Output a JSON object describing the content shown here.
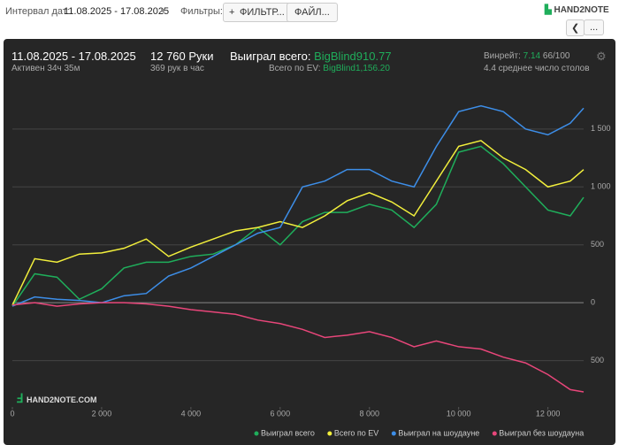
{
  "toolbar": {
    "date_label": "Интервал дат:",
    "date_range": "11.08.2025 - 17.08.2025",
    "filters_label": "Фильтры:",
    "filter_button": "ФИЛЬТР...",
    "file_button": "ФАЙЛ...",
    "logo": "HAND2NOTE",
    "more": "..."
  },
  "summary": {
    "range": "11.08.2025 - 17.08.2025",
    "active": "Активен 34ч 35м",
    "hands": "12 760 Руки",
    "hands_per_hour": "369 рук в час",
    "won_label": "Выиграл всего:",
    "won_value": "BigBlind910.77",
    "ev_label": "Всего по EV:",
    "ev_value": "BigBlind1,156.20",
    "winrate_label": "Винрейт:",
    "winrate_value": "7.14",
    "winrate_unit": "66/100",
    "tables": "4.4 среднее число столов"
  },
  "watermark": "HAND2NOTE.COM",
  "chart_data": {
    "type": "line",
    "x": [
      0,
      500,
      1000,
      1500,
      2000,
      2500,
      3000,
      3500,
      4000,
      4500,
      5000,
      5500,
      6000,
      6500,
      7000,
      7500,
      8000,
      8500,
      9000,
      9500,
      10000,
      10500,
      11000,
      11500,
      12000,
      12500,
      12800
    ],
    "xlim": [
      0,
      12800
    ],
    "xticks": [
      0,
      {
        "value": 2000,
        "label": "2 000"
      },
      {
        "value": 4000,
        "label": "4 000"
      },
      {
        "value": 6000,
        "label": "6 000"
      },
      {
        "value": 8000,
        "label": "8 000"
      },
      {
        "value": 10000,
        "label": "10 000"
      },
      {
        "value": 12000,
        "label": "12 000"
      }
    ],
    "ylim": [
      -900,
      1850
    ],
    "yticks": [
      {
        "value": -500,
        "label": "500"
      },
      0,
      500,
      {
        "value": 1000,
        "label": "1 000"
      },
      {
        "value": 1500,
        "label": "1 500"
      }
    ],
    "grid": true,
    "series": [
      {
        "name": "Выиграл всего",
        "color": "#1fae5b",
        "values": [
          -30,
          250,
          220,
          30,
          120,
          300,
          350,
          350,
          400,
          420,
          500,
          650,
          500,
          700,
          780,
          780,
          850,
          800,
          650,
          850,
          1300,
          1350,
          1200,
          1000,
          800,
          750,
          910
        ]
      },
      {
        "name": "Всего по EV",
        "color": "#f2ef3c",
        "values": [
          -20,
          380,
          350,
          420,
          430,
          470,
          550,
          400,
          480,
          550,
          620,
          650,
          700,
          650,
          750,
          880,
          950,
          870,
          750,
          1050,
          1350,
          1400,
          1250,
          1150,
          1000,
          1050,
          1150
        ]
      },
      {
        "name": "Выиграл на шоудауне",
        "color": "#3d8ee8",
        "values": [
          -30,
          50,
          30,
          20,
          0,
          60,
          80,
          230,
          300,
          400,
          500,
          600,
          650,
          1000,
          1050,
          1150,
          1150,
          1050,
          1000,
          1350,
          1650,
          1700,
          1650,
          1500,
          1450,
          1550,
          1680
        ]
      },
      {
        "name": "Выиграл без шоудауна",
        "color": "#e8467a",
        "values": [
          -20,
          0,
          -30,
          -10,
          0,
          0,
          -10,
          -30,
          -60,
          -80,
          -100,
          -150,
          -180,
          -230,
          -300,
          -280,
          -250,
          -300,
          -380,
          -330,
          -380,
          -400,
          -470,
          -520,
          -620,
          -750,
          -770
        ]
      }
    ]
  }
}
